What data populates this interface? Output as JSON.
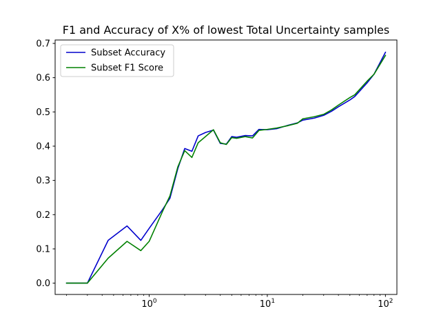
{
  "chart_data": {
    "type": "line",
    "title": "F1 and Accuracy of X% of lowest Total Uncertainty samples",
    "xscale": "log",
    "xlim": [
      0.16,
      125
    ],
    "ylim": [
      -0.033,
      0.71
    ],
    "yticks": [
      0.0,
      0.1,
      0.2,
      0.3,
      0.4,
      0.5,
      0.6,
      0.7
    ],
    "ytick_labels": [
      "0.0",
      "0.1",
      "0.2",
      "0.3",
      "0.4",
      "0.5",
      "0.6",
      "0.7"
    ],
    "xticks": [
      1,
      10,
      100
    ],
    "xtick_labels": [
      {
        "base": "10",
        "exp": "0"
      },
      {
        "base": "10",
        "exp": "1"
      },
      {
        "base": "10",
        "exp": "2"
      }
    ],
    "legend_position": "top-left",
    "series": [
      {
        "name": "Subset Accuracy",
        "color": "#0000cc",
        "x": [
          0.2,
          0.25,
          0.3,
          0.45,
          0.65,
          0.85,
          1.0,
          1.3,
          1.5,
          1.75,
          2.0,
          2.3,
          2.6,
          3.0,
          3.5,
          4.0,
          4.5,
          5.0,
          5.5,
          6.5,
          7.5,
          8.5,
          10.0,
          12.0,
          15.0,
          18.0,
          20.0,
          25.0,
          30.0,
          35.0,
          40.0,
          50.0,
          55.0,
          70.0,
          80.0,
          100.0
        ],
        "y": [
          0.0,
          0.0,
          0.0,
          0.125,
          0.167,
          0.125,
          0.16,
          0.215,
          0.248,
          0.335,
          0.393,
          0.385,
          0.43,
          0.44,
          0.447,
          0.408,
          0.406,
          0.428,
          0.426,
          0.431,
          0.43,
          0.449,
          0.448,
          0.451,
          0.461,
          0.468,
          0.476,
          0.482,
          0.49,
          0.502,
          0.515,
          0.535,
          0.545,
          0.585,
          0.61,
          0.674
        ]
      },
      {
        "name": "Subset F1 Score",
        "color": "#008000",
        "x": [
          0.2,
          0.25,
          0.3,
          0.45,
          0.65,
          0.85,
          1.0,
          1.3,
          1.5,
          1.75,
          2.0,
          2.3,
          2.6,
          3.0,
          3.5,
          4.0,
          4.5,
          5.0,
          5.5,
          6.5,
          7.5,
          8.5,
          10.0,
          12.0,
          15.0,
          18.0,
          20.0,
          25.0,
          30.0,
          35.0,
          40.0,
          50.0,
          55.0,
          70.0,
          80.0,
          100.0
        ],
        "y": [
          0.0,
          0.0,
          0.0,
          0.073,
          0.122,
          0.095,
          0.122,
          0.21,
          0.255,
          0.34,
          0.387,
          0.367,
          0.41,
          0.428,
          0.448,
          0.41,
          0.405,
          0.425,
          0.423,
          0.428,
          0.424,
          0.446,
          0.449,
          0.453,
          0.46,
          0.467,
          0.48,
          0.486,
          0.493,
          0.506,
          0.52,
          0.542,
          0.55,
          0.59,
          0.61,
          0.665
        ]
      }
    ]
  }
}
